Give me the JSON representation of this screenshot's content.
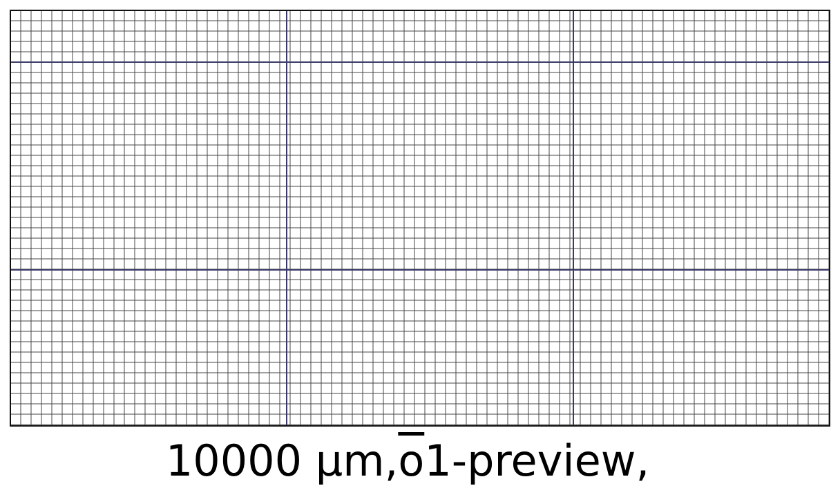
{
  "figure": {
    "title": "10000 µm,",
    "model_name": "o1-preview",
    "trailing": ","
  },
  "caption": {
    "prefix": "10000 µm,",
    "overlined": "o",
    "suffix": "1-preview,"
  },
  "grid": {
    "minor_color": "#444444",
    "major_color": "#3a3a6a",
    "border_color": "#111111",
    "background": "#ffffff"
  }
}
